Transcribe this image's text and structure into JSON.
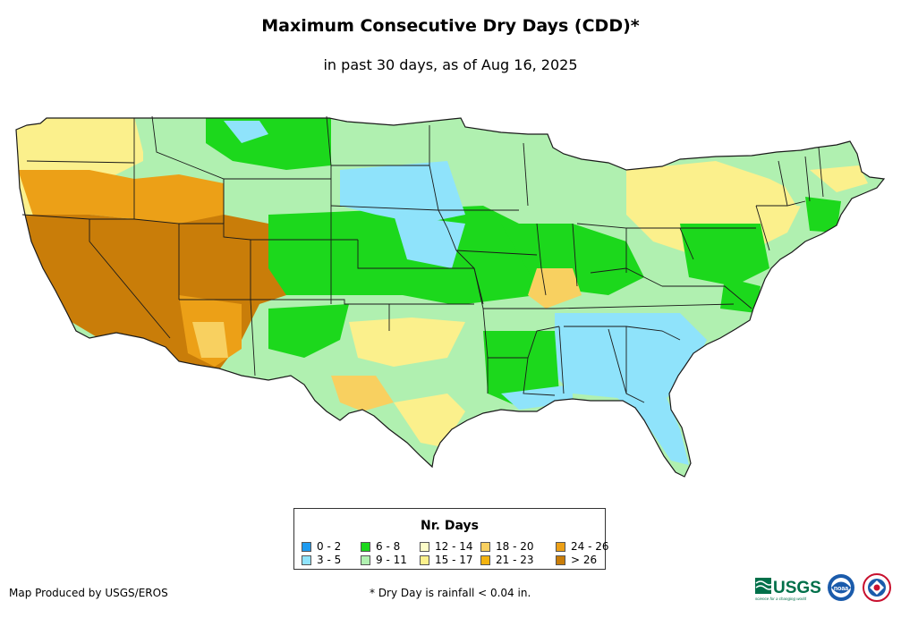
{
  "title": "Maximum Consecutive Dry Days (CDD)*",
  "subtitle": "in past 30 days, as of Aug 16, 2025",
  "legend": {
    "title": "Nr. Days",
    "items": [
      {
        "label": "0 - 2",
        "color": "#1e9bf0"
      },
      {
        "label": "3 - 5",
        "color": "#8fe3fb"
      },
      {
        "label": "6 - 8",
        "color": "#1cd81c"
      },
      {
        "label": "9 - 11",
        "color": "#b0f0b0"
      },
      {
        "label": "12 - 14",
        "color": "#fdfdc8"
      },
      {
        "label": "15 - 17",
        "color": "#fbf08c"
      },
      {
        "label": "18 - 20",
        "color": "#f8d060"
      },
      {
        "label": "21 - 23",
        "color": "#f3b30f"
      },
      {
        "label": "24 - 26",
        "color": "#eca017"
      },
      {
        "label": "> 26",
        "color": "#c97d09"
      }
    ]
  },
  "footer": {
    "credit": "Map Produced by USGS/EROS",
    "note": "* Dry Day is rainfall < 0.04 in."
  },
  "logos": {
    "usgs": "USGS",
    "usgs_tagline": "science for a changing world",
    "noaa": "noaa"
  },
  "map": {
    "subject": "Contiguous United States",
    "palette": {
      "border": "#1a1a1a",
      "background": "#ffffff"
    }
  }
}
